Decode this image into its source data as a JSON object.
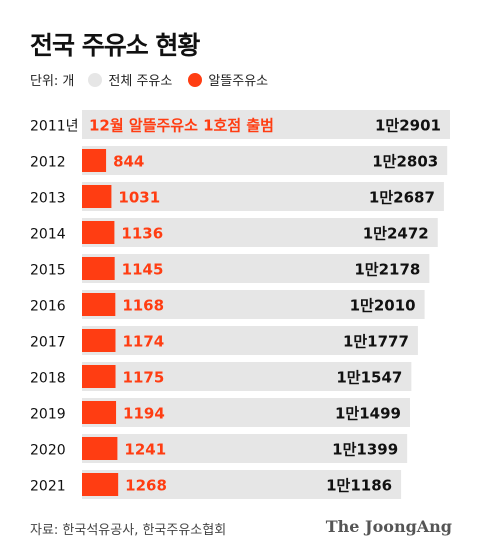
{
  "chart_data": {
    "type": "bar",
    "title": "전국 주유소 현황",
    "unit_label": "단위: 개",
    "categories": [
      "2011년",
      "2012",
      "2013",
      "2014",
      "2015",
      "2016",
      "2017",
      "2018",
      "2019",
      "2020",
      "2021"
    ],
    "series": [
      {
        "name": "전체 주유소",
        "values": [
          12901,
          12803,
          12687,
          12472,
          12178,
          12010,
          11777,
          11547,
          11499,
          11399,
          11186
        ],
        "labels": [
          "1만2901",
          "1만2803",
          "1만2687",
          "1만2472",
          "1만2178",
          "1만2010",
          "1만1777",
          "1만1547",
          "1만1499",
          "1만1399",
          "1만1186"
        ],
        "color": "#e6e6e6"
      },
      {
        "name": "알뜰주유소",
        "values": [
          0,
          844,
          1031,
          1136,
          1145,
          1168,
          1174,
          1175,
          1194,
          1241,
          1268
        ],
        "labels": [
          "12월 알뜰주유소 1호점 출범",
          "844",
          "1031",
          "1136",
          "1145",
          "1168",
          "1174",
          "1175",
          "1194",
          "1241",
          "1268"
        ],
        "color": "#ff3d12"
      }
    ],
    "label_color": "#111111",
    "highlight_label_color": "#ff3d12"
  },
  "source": "자료: 한국석유공사, 한국주유소협회",
  "credit": "The JoongAng"
}
